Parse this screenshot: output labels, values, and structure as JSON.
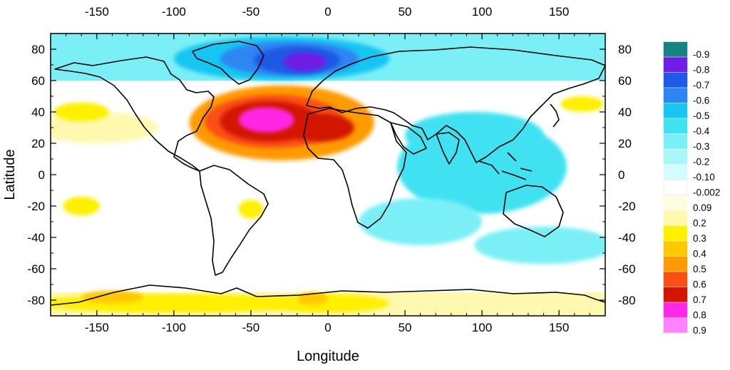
{
  "chart_data": {
    "type": "heatmap",
    "title": "",
    "xlabel": "Longitude",
    "ylabel": "Latitude",
    "xlim": [
      -180,
      180
    ],
    "ylim": [
      -90,
      90
    ],
    "x_ticks": [
      -150,
      -100,
      -50,
      0,
      50,
      100,
      150
    ],
    "y_ticks": [
      -80,
      -60,
      -40,
      -20,
      0,
      20,
      40,
      60,
      80
    ],
    "grid": false,
    "legend": "right",
    "colorbar": [
      {
        "label": "-0.9",
        "color": "#168484"
      },
      {
        "label": "-0.8",
        "color": "#6e1ee6"
      },
      {
        "label": "-0.7",
        "color": "#1e5ae6"
      },
      {
        "label": "-0.6",
        "color": "#2e86f2"
      },
      {
        "label": "-0.5",
        "color": "#18c6f2"
      },
      {
        "label": "-0.4",
        "color": "#40e2f2"
      },
      {
        "label": "-0.3",
        "color": "#7af0f6"
      },
      {
        "label": "-0.2",
        "color": "#a8f6fa"
      },
      {
        "label": "-0.10",
        "color": "#d4fcfe"
      },
      {
        "label": "-0.002",
        "color": "#ffffff"
      },
      {
        "label": "0.09",
        "color": "#fffde0"
      },
      {
        "label": "0.2",
        "color": "#fff9b0"
      },
      {
        "label": "0.3",
        "color": "#fff000"
      },
      {
        "label": "0.4",
        "color": "#ffc800"
      },
      {
        "label": "0.5",
        "color": "#ff9b00"
      },
      {
        "label": "0.6",
        "color": "#fa5014"
      },
      {
        "label": "0.7",
        "color": "#d21400"
      },
      {
        "label": "0.8",
        "color": "#ff28e6"
      },
      {
        "label": "0.9",
        "color": "#ff82ff"
      }
    ],
    "field_blobs": [
      {
        "lon": -30,
        "lat": 33,
        "rx": 60,
        "ry": 24,
        "level": 0.5
      },
      {
        "lon": -35,
        "lat": 34,
        "rx": 45,
        "ry": 17,
        "level": 0.6
      },
      {
        "lon": -38,
        "lat": 34,
        "rx": 32,
        "ry": 13,
        "level": 0.7
      },
      {
        "lon": -5,
        "lat": 30,
        "rx": 22,
        "ry": 9,
        "level": 0.7
      },
      {
        "lon": -40,
        "lat": 35,
        "rx": 18,
        "ry": 8,
        "level": 0.8
      },
      {
        "lon": -30,
        "lat": 74,
        "rx": 70,
        "ry": 14,
        "level": -0.5
      },
      {
        "lon": -25,
        "lat": 74,
        "rx": 45,
        "ry": 11,
        "level": -0.6
      },
      {
        "lon": -20,
        "lat": 73,
        "rx": 28,
        "ry": 9,
        "level": -0.7
      },
      {
        "lon": -15,
        "lat": 72,
        "rx": 14,
        "ry": 6,
        "level": -0.8
      },
      {
        "lon": 100,
        "lat": 5,
        "rx": 55,
        "ry": 30,
        "level": -0.4
      },
      {
        "lon": 95,
        "lat": 25,
        "rx": 45,
        "ry": 15,
        "level": -0.4
      },
      {
        "lon": 60,
        "lat": -30,
        "rx": 40,
        "ry": 15,
        "level": -0.3
      },
      {
        "lon": 140,
        "lat": -45,
        "rx": 45,
        "ry": 12,
        "level": -0.3
      },
      {
        "lon": -150,
        "lat": 30,
        "rx": 40,
        "ry": 10,
        "level": 0.2
      },
      {
        "lon": -160,
        "lat": 40,
        "rx": 18,
        "ry": 6,
        "level": 0.3
      },
      {
        "lon": 165,
        "lat": 45,
        "rx": 14,
        "ry": 5,
        "level": 0.3
      },
      {
        "lon": -160,
        "lat": -20,
        "rx": 12,
        "ry": 6,
        "level": 0.3
      },
      {
        "lon": -50,
        "lat": -22,
        "rx": 8,
        "ry": 6,
        "level": 0.3
      },
      {
        "lon": -100,
        "lat": -82,
        "rx": 90,
        "ry": 6,
        "level": 0.3
      },
      {
        "lon": -140,
        "lat": -78,
        "rx": 20,
        "ry": 4,
        "level": 0.4
      },
      {
        "lon": 0,
        "lat": -82,
        "rx": 40,
        "ry": 6,
        "level": 0.3
      },
      {
        "lon": -10,
        "lat": -79,
        "rx": 10,
        "ry": 4,
        "level": 0.4
      },
      {
        "lon": 120,
        "lat": -82,
        "rx": 60,
        "ry": 5,
        "level": 0.2
      }
    ]
  }
}
